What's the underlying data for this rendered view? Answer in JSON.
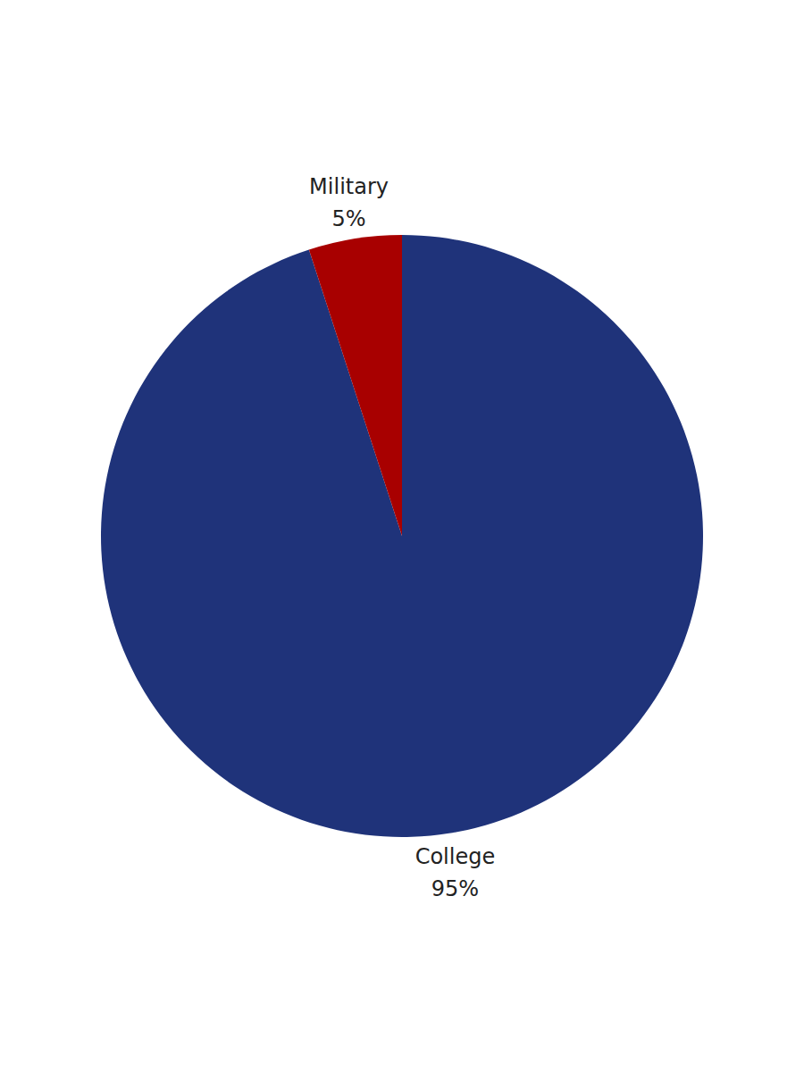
{
  "chart_data": {
    "type": "pie",
    "categories": [
      "College",
      "Military"
    ],
    "values": [
      95,
      5
    ],
    "value_labels": [
      "95%",
      "5%"
    ],
    "colors": [
      "#1f337a",
      "#a80000"
    ]
  }
}
